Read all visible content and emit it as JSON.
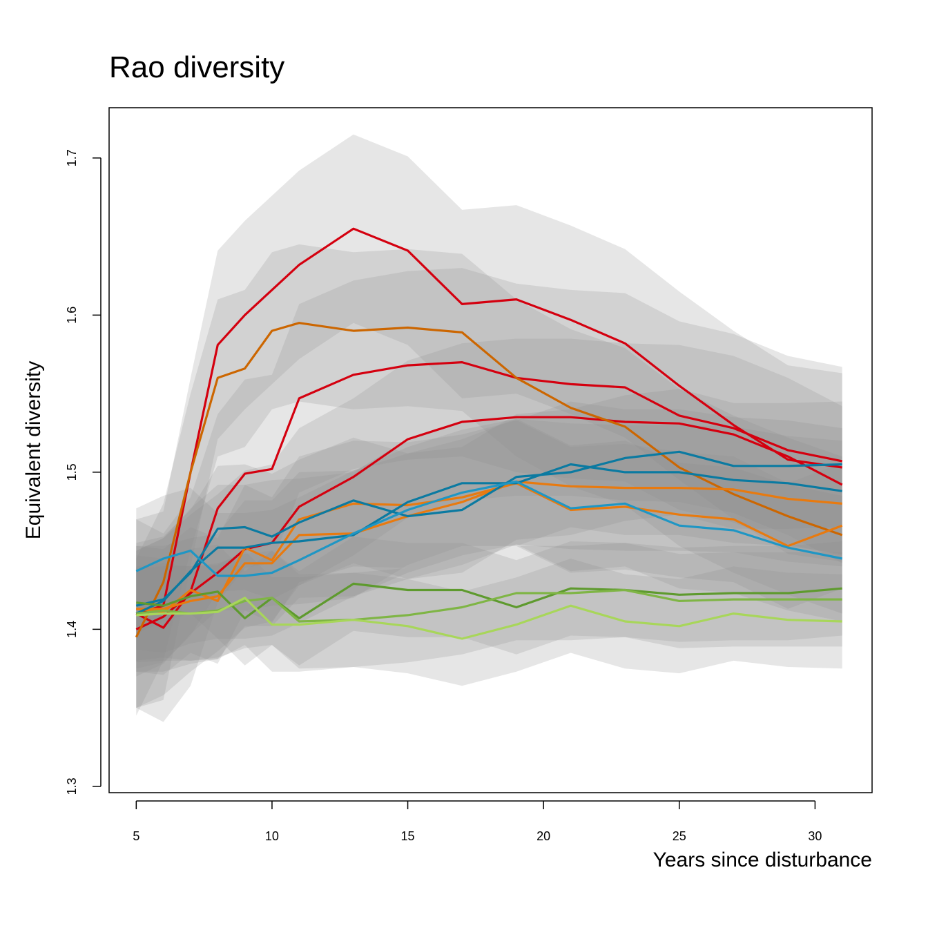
{
  "chart_data": {
    "type": "line",
    "title": "Rao diversity",
    "xlabel": "Years since disturbance",
    "ylabel": "Equivalent diversity",
    "xlim": [
      4,
      32.1
    ],
    "ylim": [
      1.296,
      1.732
    ],
    "x_ticks": [
      5,
      10,
      15,
      20,
      25,
      30
    ],
    "y_ticks": [
      1.3,
      1.4,
      1.5,
      1.6,
      1.7
    ],
    "x_tick_labels": [
      "5",
      "10",
      "15",
      "20",
      "25",
      "30"
    ],
    "y_tick_labels": [
      "1.3",
      "1.4",
      "1.5",
      "1.6",
      "1.7"
    ],
    "grid": false,
    "legend": "none",
    "band_color": "#8c8c8c",
    "series": [
      {
        "color": "#d4000f",
        "band": 0.06,
        "x": [
          5,
          6,
          7,
          8,
          9,
          10,
          11,
          13,
          15,
          17,
          19,
          21,
          23,
          25,
          27,
          29,
          31
        ],
        "y": [
          1.41,
          1.415,
          1.5,
          1.581,
          1.6,
          1.616,
          1.632,
          1.655,
          1.641,
          1.607,
          1.61,
          1.597,
          1.582,
          1.555,
          1.53,
          1.508,
          1.503
        ]
      },
      {
        "color": "#d4000f",
        "band": 0.06,
        "x": [
          5,
          6,
          7,
          8,
          9,
          10,
          11,
          13,
          15,
          17,
          19,
          21,
          23,
          25,
          27,
          29,
          31
        ],
        "y": [
          1.41,
          1.401,
          1.424,
          1.477,
          1.499,
          1.502,
          1.547,
          1.562,
          1.568,
          1.57,
          1.56,
          1.556,
          1.554,
          1.536,
          1.528,
          1.514,
          1.507
        ]
      },
      {
        "color": "#d4000f",
        "band": 0.05,
        "x": [
          5,
          6,
          7,
          8,
          9,
          10,
          11,
          13,
          15,
          17,
          19,
          21,
          23,
          25,
          27,
          29,
          31
        ],
        "y": [
          1.4,
          1.408,
          1.423,
          1.436,
          1.451,
          1.455,
          1.478,
          1.497,
          1.521,
          1.532,
          1.535,
          1.535,
          1.532,
          1.531,
          1.524,
          1.51,
          1.492
        ]
      },
      {
        "color": "#cc6600",
        "band": 0.05,
        "x": [
          5,
          6,
          7,
          8,
          9,
          10,
          11,
          13,
          15,
          17,
          19,
          21,
          23,
          25,
          27,
          29,
          31
        ],
        "y": [
          1.395,
          1.43,
          1.5,
          1.56,
          1.566,
          1.59,
          1.595,
          1.59,
          1.592,
          1.589,
          1.56,
          1.541,
          1.529,
          1.503,
          1.486,
          1.472,
          1.46
        ]
      },
      {
        "color": "#e87a0f",
        "band": 0.04,
        "x": [
          5,
          6,
          7,
          8,
          9,
          10,
          11,
          13,
          15,
          17,
          19,
          21,
          23,
          25,
          27,
          29,
          31
        ],
        "y": [
          1.413,
          1.411,
          1.425,
          1.418,
          1.452,
          1.444,
          1.47,
          1.48,
          1.479,
          1.484,
          1.493,
          1.476,
          1.478,
          1.473,
          1.47,
          1.453,
          1.466
        ]
      },
      {
        "color": "#e87a0f",
        "band": 0.04,
        "x": [
          5,
          6,
          7,
          8,
          9,
          10,
          11,
          13,
          15,
          17,
          19,
          21,
          23,
          25,
          27,
          29,
          31
        ],
        "y": [
          1.413,
          1.413,
          1.418,
          1.421,
          1.442,
          1.442,
          1.46,
          1.461,
          1.472,
          1.481,
          1.494,
          1.491,
          1.49,
          1.49,
          1.489,
          1.483,
          1.48
        ]
      },
      {
        "color": "#0b7aa1",
        "band": 0.04,
        "x": [
          5,
          6,
          7,
          8,
          9,
          10,
          11,
          13,
          15,
          17,
          19,
          21,
          23,
          25,
          27,
          29,
          31
        ],
        "y": [
          1.415,
          1.419,
          1.436,
          1.464,
          1.465,
          1.459,
          1.468,
          1.482,
          1.472,
          1.476,
          1.497,
          1.5,
          1.509,
          1.513,
          1.504,
          1.504,
          1.505
        ]
      },
      {
        "color": "#0b7aa1",
        "band": 0.04,
        "x": [
          5,
          6,
          7,
          8,
          9,
          10,
          11,
          13,
          15,
          17,
          19,
          21,
          23,
          25,
          27,
          29,
          31
        ],
        "y": [
          1.41,
          1.418,
          1.437,
          1.452,
          1.452,
          1.455,
          1.456,
          1.46,
          1.481,
          1.493,
          1.493,
          1.505,
          1.5,
          1.5,
          1.495,
          1.493,
          1.488
        ]
      },
      {
        "color": "#1f96c4",
        "band": 0.04,
        "x": [
          5,
          6,
          7,
          8,
          9,
          10,
          11,
          13,
          15,
          17,
          19,
          21,
          23,
          25,
          27,
          29,
          31
        ],
        "y": [
          1.437,
          1.445,
          1.45,
          1.434,
          1.434,
          1.436,
          1.444,
          1.461,
          1.476,
          1.487,
          1.494,
          1.477,
          1.48,
          1.466,
          1.463,
          1.452,
          1.445
        ]
      },
      {
        "color": "#5e9a2e",
        "band": 0.03,
        "x": [
          5,
          6,
          7,
          8,
          9,
          10,
          11,
          13,
          15,
          17,
          19,
          21,
          23,
          25,
          27,
          29,
          31
        ],
        "y": [
          1.417,
          1.415,
          1.421,
          1.424,
          1.407,
          1.42,
          1.407,
          1.429,
          1.425,
          1.425,
          1.414,
          1.426,
          1.425,
          1.422,
          1.423,
          1.423,
          1.426
        ]
      },
      {
        "color": "#7fb545",
        "band": 0.03,
        "x": [
          5,
          6,
          7,
          8,
          9,
          10,
          11,
          13,
          15,
          17,
          19,
          21,
          23,
          25,
          27,
          29,
          31
        ],
        "y": [
          1.41,
          1.412,
          1.41,
          1.412,
          1.418,
          1.42,
          1.405,
          1.406,
          1.409,
          1.414,
          1.423,
          1.423,
          1.425,
          1.418,
          1.419,
          1.419,
          1.419
        ]
      },
      {
        "color": "#a8d65a",
        "band": 0.03,
        "x": [
          5,
          6,
          7,
          8,
          9,
          10,
          11,
          13,
          15,
          17,
          19,
          21,
          23,
          25,
          27,
          29,
          31
        ],
        "y": [
          1.409,
          1.41,
          1.41,
          1.411,
          1.42,
          1.403,
          1.403,
          1.406,
          1.402,
          1.394,
          1.403,
          1.415,
          1.405,
          1.402,
          1.41,
          1.406,
          1.405
        ]
      }
    ]
  }
}
